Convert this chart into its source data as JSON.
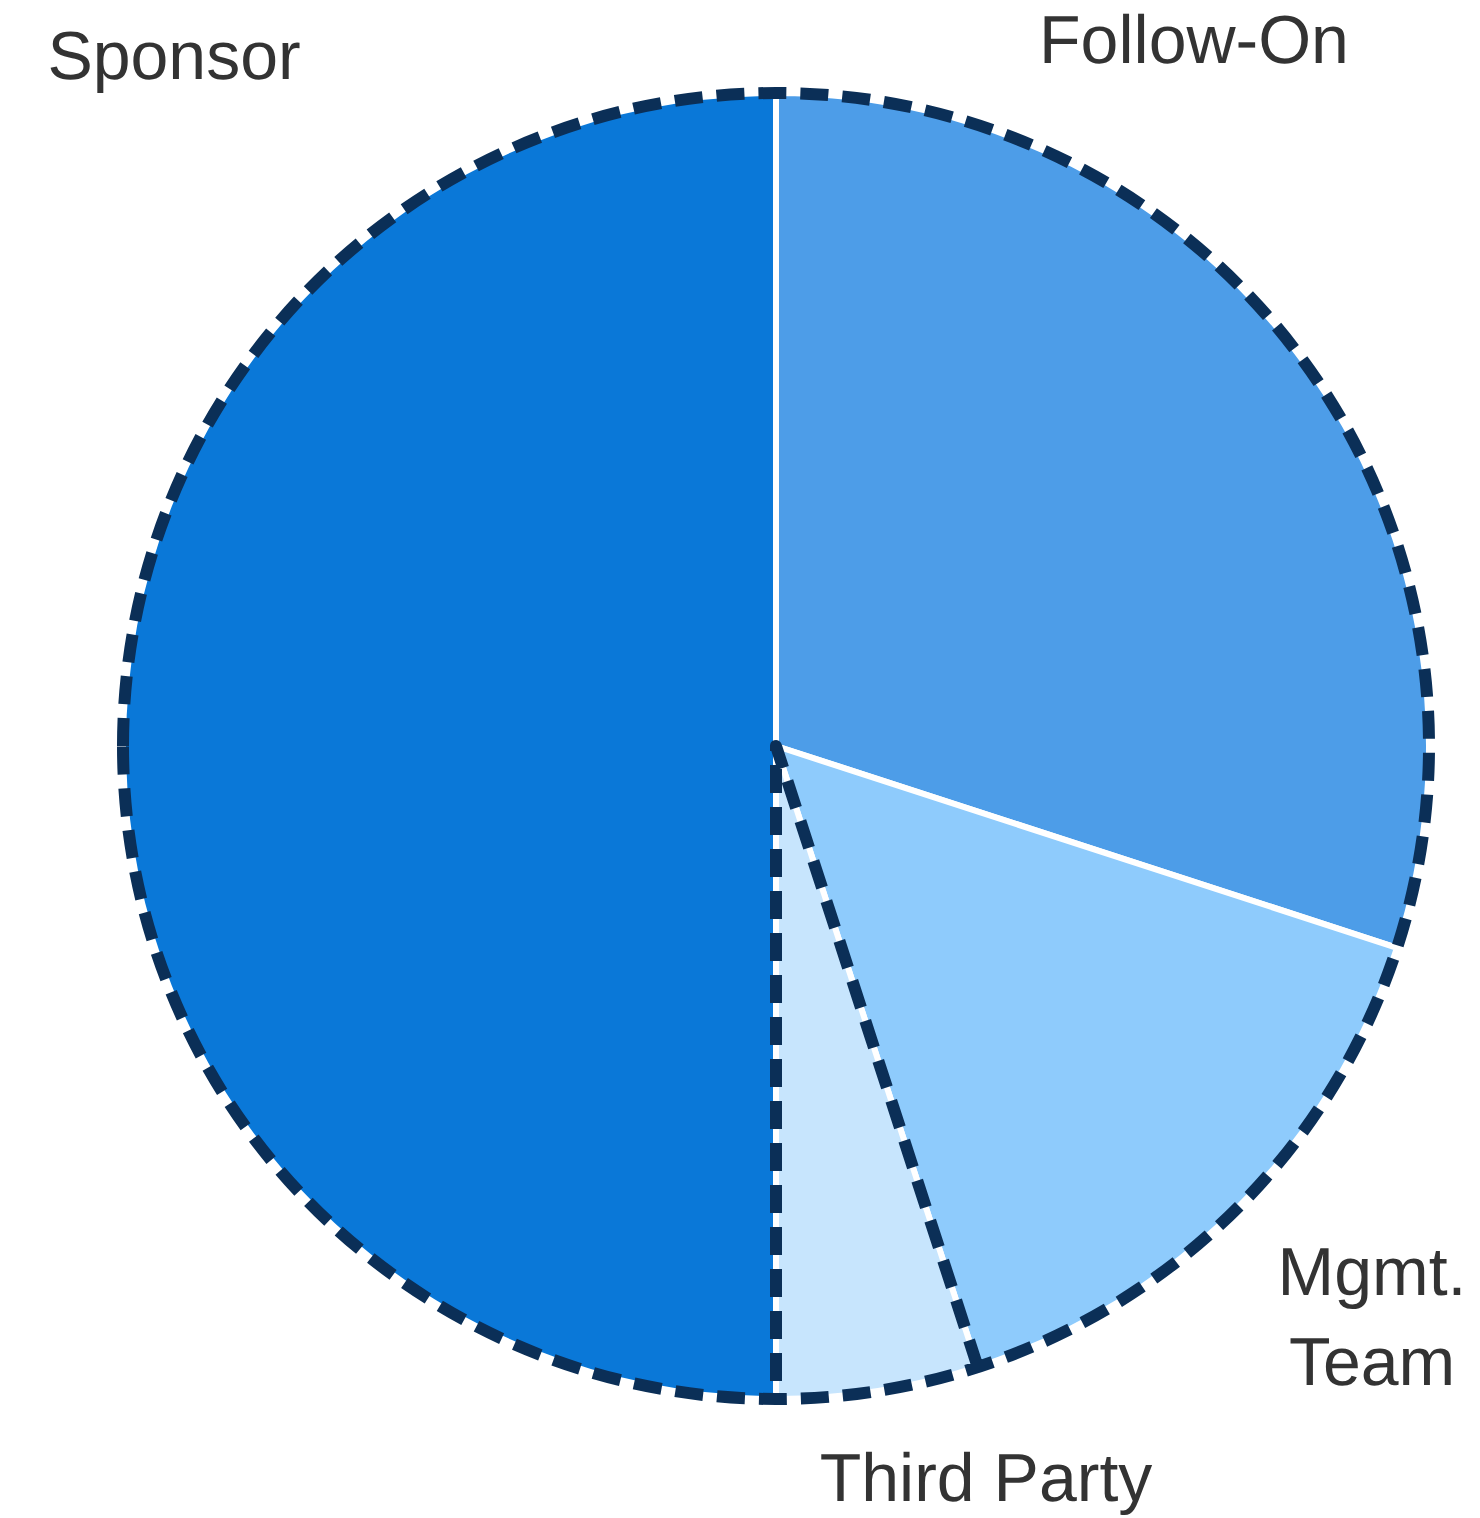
{
  "chart_data": {
    "type": "pie",
    "categories": [
      "Follow-On",
      "Mgmt. Team",
      "Third Party",
      "Sponsor"
    ],
    "values": [
      30,
      15,
      5,
      50
    ],
    "colors": [
      "#4d9de8",
      "#8ecbfc",
      "#c7e5fd",
      "#0a78d8"
    ],
    "legend": false
  }
}
